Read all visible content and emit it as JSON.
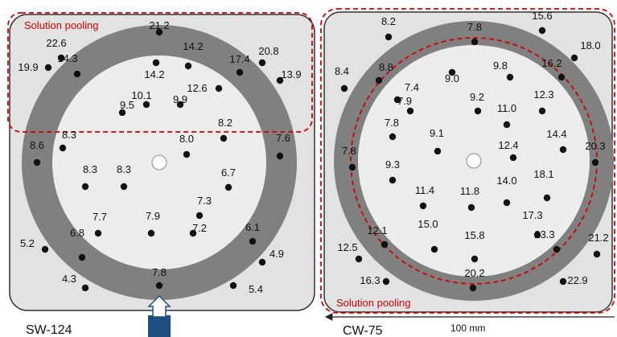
{
  "left_panel": {
    "sample_label": "SW-124",
    "pooling_label": "Solution pooling",
    "points": [
      {
        "label": "21.2"
      },
      {
        "label": "22.6"
      },
      {
        "label": "19.9"
      },
      {
        "label": "14.3"
      },
      {
        "label": "14.2"
      },
      {
        "label": "17.4"
      },
      {
        "label": "20.8"
      },
      {
        "label": "13.9"
      },
      {
        "label": "14.2"
      },
      {
        "label": "12.6"
      },
      {
        "label": "10.1"
      },
      {
        "label": "9.5"
      },
      {
        "label": "9.9"
      },
      {
        "label": "8.2"
      },
      {
        "label": "8.0"
      },
      {
        "label": "8.3"
      },
      {
        "label": "8.6"
      },
      {
        "label": "7.6"
      },
      {
        "label": "8.3"
      },
      {
        "label": "8.3"
      },
      {
        "label": "6.7"
      },
      {
        "label": "7.3"
      },
      {
        "label": "7.7"
      },
      {
        "label": "7.9"
      },
      {
        "label": "7.2"
      },
      {
        "label": "5.2"
      },
      {
        "label": "6.8"
      },
      {
        "label": "6.1"
      },
      {
        "label": "4.9"
      },
      {
        "label": "4.3"
      },
      {
        "label": "7.8"
      },
      {
        "label": "5.4"
      }
    ]
  },
  "right_panel": {
    "sample_label": "CW-75",
    "pooling_label": "Solution pooling",
    "points": [
      {
        "label": "8.2"
      },
      {
        "label": "7.8"
      },
      {
        "label": "15.6"
      },
      {
        "label": "18.0"
      },
      {
        "label": "8.4"
      },
      {
        "label": "8.8"
      },
      {
        "label": "9.0"
      },
      {
        "label": "9.8"
      },
      {
        "label": "16.2"
      },
      {
        "label": "7.4"
      },
      {
        "label": "7.9"
      },
      {
        "label": "9.2"
      },
      {
        "label": "11.0"
      },
      {
        "label": "12.3"
      },
      {
        "label": "7.8"
      },
      {
        "label": "9.1"
      },
      {
        "label": "12.4"
      },
      {
        "label": "14.4"
      },
      {
        "label": "7.8"
      },
      {
        "label": "20.3"
      },
      {
        "label": "9.3"
      },
      {
        "label": "18.1"
      },
      {
        "label": "14.0"
      },
      {
        "label": "11.4"
      },
      {
        "label": "11.8"
      },
      {
        "label": "17.3"
      },
      {
        "label": "15.0"
      },
      {
        "label": "15.8"
      },
      {
        "label": "12.1"
      },
      {
        "label": "23.3"
      },
      {
        "label": "12.5"
      },
      {
        "label": "21.2"
      },
      {
        "label": "16.3"
      },
      {
        "label": "20.2"
      },
      {
        "label": "22.9"
      }
    ]
  },
  "scale_bar_label": "100 mm"
}
